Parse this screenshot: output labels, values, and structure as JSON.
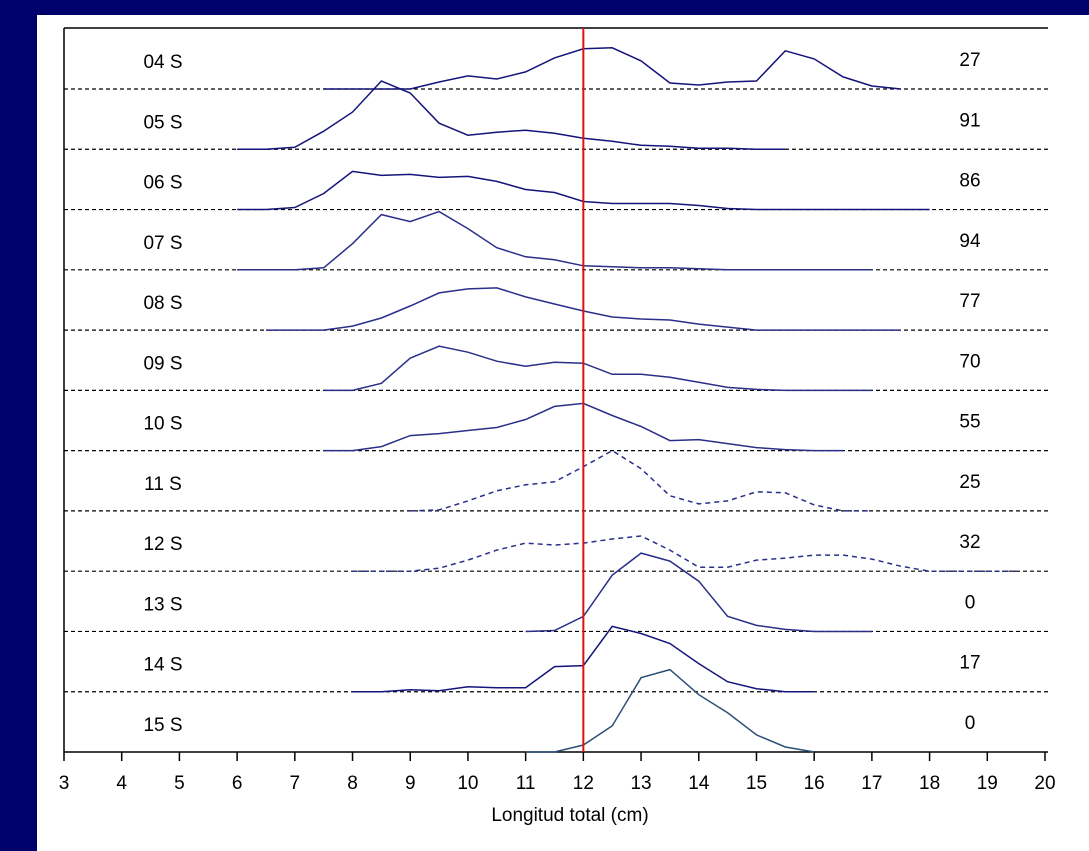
{
  "chart_data": {
    "type": "ridgeline",
    "x_label": "Longitud total (cm)",
    "xlim": [
      3,
      20
    ],
    "xticks": [
      3,
      4,
      5,
      6,
      7,
      8,
      9,
      10,
      11,
      12,
      13,
      14,
      15,
      16,
      17,
      18,
      19,
      20
    ],
    "ylim": [
      0,
      60
    ],
    "reference_line": {
      "value": 12,
      "color": "#e01010"
    },
    "x": [
      6,
      6.5,
      7,
      7.5,
      8,
      8.5,
      9,
      9.5,
      10,
      10.5,
      11,
      11.5,
      12,
      12.5,
      13,
      13.5,
      14,
      14.5,
      15,
      15.5,
      16,
      16.5,
      17,
      17.5,
      18,
      18.5,
      19,
      19.5
    ],
    "series": [
      {
        "name": "04 S",
        "n": 27,
        "color": "#14147a",
        "dashed": false,
        "values": [
          null,
          null,
          null,
          0,
          0,
          0,
          0,
          7,
          13,
          10,
          17,
          31,
          40,
          41,
          28,
          6,
          4,
          7,
          8,
          38,
          30,
          12,
          3,
          0,
          null,
          null,
          null,
          null
        ]
      },
      {
        "name": "05 S",
        "n": 91,
        "color": "#14147a",
        "dashed": false,
        "values": [
          0,
          0,
          2,
          18,
          37,
          68,
          56,
          26,
          14,
          17,
          19,
          16,
          11,
          8,
          4,
          3,
          1,
          1,
          0,
          0,
          null,
          null,
          null,
          null,
          null,
          null,
          null,
          null
        ]
      },
      {
        "name": "06 S",
        "n": 86,
        "color": "#14147a",
        "dashed": false,
        "values": [
          0,
          0,
          2,
          16,
          38,
          34,
          35,
          32,
          33,
          28,
          20,
          17,
          8,
          6,
          6,
          6,
          4,
          1,
          0,
          0,
          0,
          0,
          0,
          0,
          0,
          null,
          null,
          null
        ]
      },
      {
        "name": "07 S",
        "n": 94,
        "color": "#2a2f8a",
        "dashed": false,
        "values": [
          0,
          0,
          0,
          2,
          26,
          55,
          48,
          58,
          41,
          22,
          13,
          10,
          4,
          3,
          2,
          2,
          1,
          0,
          0,
          0,
          0,
          0,
          0,
          null,
          null,
          null,
          null,
          null
        ]
      },
      {
        "name": "08 S",
        "n": 77,
        "color": "#2a2f8a",
        "dashed": false,
        "values": [
          null,
          0,
          0,
          0,
          4,
          12,
          24,
          37,
          41,
          42,
          33,
          26,
          19,
          13,
          11,
          10,
          6,
          3,
          0,
          0,
          0,
          0,
          0,
          0,
          null,
          null,
          null,
          null
        ]
      },
      {
        "name": "09 S",
        "n": 70,
        "color": "#2a2f8a",
        "dashed": false,
        "values": [
          null,
          null,
          null,
          0,
          0,
          7,
          32,
          44,
          38,
          29,
          24,
          28,
          27,
          16,
          16,
          13,
          8,
          3,
          1,
          0,
          0,
          0,
          0,
          null,
          null,
          null,
          null,
          null
        ]
      },
      {
        "name": "10 S",
        "n": 55,
        "color": "#2a2f8a",
        "dashed": false,
        "values": [
          null,
          null,
          null,
          0,
          0,
          4,
          15,
          17,
          20,
          23,
          31,
          44,
          47,
          35,
          24,
          10,
          11,
          7,
          3,
          1,
          0,
          0,
          null,
          null,
          null,
          null,
          null,
          null
        ]
      },
      {
        "name": "11 S",
        "n": 25,
        "color": "#2a2f8a",
        "dashed": true,
        "values": [
          null,
          null,
          null,
          null,
          null,
          null,
          0,
          1,
          10,
          20,
          26,
          29,
          44,
          60,
          42,
          15,
          7,
          10,
          19,
          18,
          6,
          0,
          0,
          null,
          null,
          null,
          null,
          null
        ]
      },
      {
        "name": "12 S",
        "n": 32,
        "color": "#2a2f8a",
        "dashed": true,
        "values": [
          null,
          null,
          null,
          null,
          0,
          0,
          0,
          3,
          11,
          21,
          28,
          26,
          28,
          32,
          35,
          21,
          4,
          4,
          11,
          13,
          16,
          16,
          12,
          5,
          0,
          0,
          0,
          0
        ]
      },
      {
        "name": "13 S",
        "n": 0,
        "color": "#2a2f8a",
        "dashed": false,
        "values": [
          null,
          null,
          null,
          null,
          null,
          null,
          null,
          null,
          null,
          null,
          0,
          1,
          15,
          56,
          78,
          70,
          50,
          15,
          6,
          2,
          0,
          0,
          0,
          null,
          null,
          null,
          null,
          null
        ]
      },
      {
        "name": "14 S",
        "n": 17,
        "color": "#14147a",
        "dashed": false,
        "values": [
          null,
          null,
          null,
          null,
          0,
          0,
          2,
          1,
          5,
          4,
          4,
          25,
          26,
          65,
          58,
          48,
          28,
          10,
          3,
          0,
          0,
          null,
          null,
          null,
          null,
          null,
          null,
          null
        ]
      },
      {
        "name": "15 S",
        "n": 0,
        "color": "#2a5078",
        "dashed": false,
        "values": [
          null,
          null,
          null,
          null,
          null,
          null,
          null,
          null,
          null,
          null,
          0,
          0,
          7,
          26,
          74,
          82,
          57,
          39,
          17,
          5,
          0,
          null,
          null,
          null,
          null,
          null,
          null,
          null
        ]
      }
    ]
  }
}
